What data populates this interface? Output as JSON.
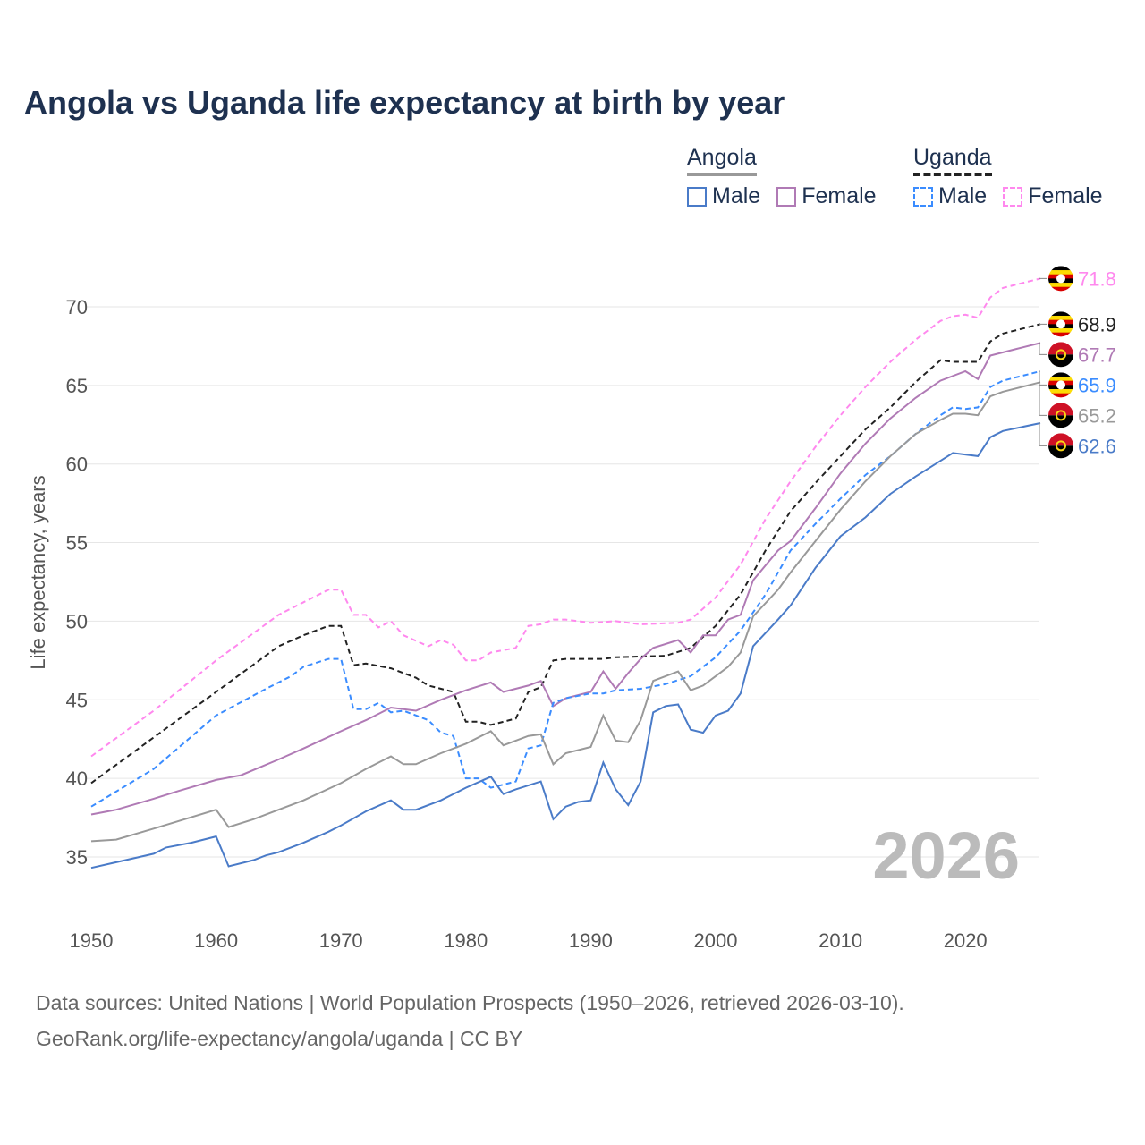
{
  "chart_data": {
    "type": "line",
    "title": "Angola vs Uganda life expectancy at birth by year",
    "xlabel": "",
    "ylabel": "Life expectancy, years",
    "xlim": [
      1950,
      2026
    ],
    "ylim": [
      32,
      73
    ],
    "xticks": [
      1950,
      1960,
      1970,
      1980,
      1990,
      2000,
      2010,
      2020
    ],
    "yticks": [
      35,
      40,
      45,
      50,
      55,
      60,
      65,
      70
    ],
    "grid": true,
    "watermark_year": "2026",
    "legend": {
      "placement": "top-right",
      "groups": [
        {
          "title": "Angola",
          "items": [
            "Male",
            "Female"
          ]
        },
        {
          "title": "Uganda",
          "items": [
            "Male",
            "Female"
          ]
        }
      ]
    },
    "series": [
      {
        "name": "Uganda Female",
        "country": "Uganda",
        "color": "#ff88ee",
        "dashed": true,
        "end_label": "71.8",
        "points": [
          [
            1950,
            41.4
          ],
          [
            1955,
            44.3
          ],
          [
            1960,
            47.5
          ],
          [
            1965,
            50.4
          ],
          [
            1967,
            51.2
          ],
          [
            1969,
            52.0
          ],
          [
            1970,
            52.0
          ],
          [
            1971,
            50.4
          ],
          [
            1972,
            50.4
          ],
          [
            1973,
            49.6
          ],
          [
            1974,
            50.0
          ],
          [
            1975,
            49.1
          ],
          [
            1977,
            48.4
          ],
          [
            1978,
            48.8
          ],
          [
            1979,
            48.5
          ],
          [
            1980,
            47.5
          ],
          [
            1981,
            47.5
          ],
          [
            1982,
            48.0
          ],
          [
            1984,
            48.3
          ],
          [
            1985,
            49.7
          ],
          [
            1986,
            49.8
          ],
          [
            1987,
            50.1
          ],
          [
            1988,
            50.1
          ],
          [
            1990,
            49.9
          ],
          [
            1992,
            50.0
          ],
          [
            1994,
            49.8
          ],
          [
            1997,
            49.9
          ],
          [
            1998,
            50.1
          ],
          [
            2000,
            51.5
          ],
          [
            2002,
            53.6
          ],
          [
            2004,
            56.5
          ],
          [
            2006,
            58.9
          ],
          [
            2008,
            61.1
          ],
          [
            2010,
            63.1
          ],
          [
            2012,
            64.9
          ],
          [
            2014,
            66.5
          ],
          [
            2016,
            67.9
          ],
          [
            2018,
            69.1
          ],
          [
            2019,
            69.4
          ],
          [
            2020,
            69.5
          ],
          [
            2021,
            69.3
          ],
          [
            2022,
            70.6
          ],
          [
            2023,
            71.2
          ],
          [
            2024,
            71.4
          ],
          [
            2026,
            71.8
          ]
        ]
      },
      {
        "name": "Uganda",
        "country": "Uganda",
        "color": "#222222",
        "dashed": true,
        "end_label": "68.9",
        "points": [
          [
            1950,
            39.7
          ],
          [
            1955,
            42.6
          ],
          [
            1960,
            45.5
          ],
          [
            1965,
            48.4
          ],
          [
            1967,
            49.1
          ],
          [
            1969,
            49.7
          ],
          [
            1970,
            49.7
          ],
          [
            1971,
            47.2
          ],
          [
            1972,
            47.3
          ],
          [
            1974,
            47.0
          ],
          [
            1976,
            46.4
          ],
          [
            1977,
            45.9
          ],
          [
            1979,
            45.5
          ],
          [
            1980,
            43.6
          ],
          [
            1981,
            43.6
          ],
          [
            1982,
            43.4
          ],
          [
            1984,
            43.8
          ],
          [
            1985,
            45.5
          ],
          [
            1986,
            45.8
          ],
          [
            1987,
            47.5
          ],
          [
            1988,
            47.6
          ],
          [
            1990,
            47.6
          ],
          [
            1991,
            47.6
          ],
          [
            1992,
            47.7
          ],
          [
            1996,
            47.8
          ],
          [
            1998,
            48.3
          ],
          [
            2000,
            49.7
          ],
          [
            2002,
            51.7
          ],
          [
            2004,
            54.5
          ],
          [
            2006,
            57.0
          ],
          [
            2008,
            58.8
          ],
          [
            2010,
            60.5
          ],
          [
            2012,
            62.2
          ],
          [
            2014,
            63.6
          ],
          [
            2016,
            65.2
          ],
          [
            2018,
            66.6
          ],
          [
            2019,
            66.5
          ],
          [
            2021,
            66.5
          ],
          [
            2022,
            67.8
          ],
          [
            2023,
            68.3
          ],
          [
            2026,
            68.9
          ]
        ]
      },
      {
        "name": "Angola Female",
        "country": "Angola",
        "color": "#b07ab5",
        "dashed": false,
        "end_label": "67.7",
        "points": [
          [
            1950,
            37.7
          ],
          [
            1952,
            38.0
          ],
          [
            1955,
            38.7
          ],
          [
            1957,
            39.2
          ],
          [
            1960,
            39.9
          ],
          [
            1962,
            40.2
          ],
          [
            1965,
            41.2
          ],
          [
            1967,
            41.9
          ],
          [
            1970,
            43.0
          ],
          [
            1972,
            43.7
          ],
          [
            1974,
            44.5
          ],
          [
            1976,
            44.3
          ],
          [
            1978,
            45.0
          ],
          [
            1980,
            45.6
          ],
          [
            1982,
            46.1
          ],
          [
            1983,
            45.5
          ],
          [
            1985,
            45.9
          ],
          [
            1986,
            46.2
          ],
          [
            1987,
            44.6
          ],
          [
            1988,
            45.1
          ],
          [
            1990,
            45.5
          ],
          [
            1991,
            46.8
          ],
          [
            1992,
            45.7
          ],
          [
            1993,
            46.7
          ],
          [
            1994,
            47.6
          ],
          [
            1995,
            48.3
          ],
          [
            1997,
            48.8
          ],
          [
            1998,
            48.0
          ],
          [
            1999,
            49.1
          ],
          [
            2000,
            49.1
          ],
          [
            2001,
            50.1
          ],
          [
            2002,
            50.4
          ],
          [
            2003,
            52.6
          ],
          [
            2005,
            54.5
          ],
          [
            2006,
            55.1
          ],
          [
            2008,
            57.2
          ],
          [
            2010,
            59.4
          ],
          [
            2012,
            61.3
          ],
          [
            2014,
            62.9
          ],
          [
            2016,
            64.2
          ],
          [
            2018,
            65.3
          ],
          [
            2020,
            65.9
          ],
          [
            2021,
            65.4
          ],
          [
            2022,
            66.9
          ],
          [
            2024,
            67.3
          ],
          [
            2026,
            67.7
          ]
        ]
      },
      {
        "name": "Uganda Male",
        "country": "Uganda",
        "color": "#3a8cff",
        "dashed": true,
        "end_label": "65.9",
        "points": [
          [
            1950,
            38.2
          ],
          [
            1955,
            40.6
          ],
          [
            1960,
            44.0
          ],
          [
            1964,
            45.7
          ],
          [
            1966,
            46.5
          ],
          [
            1967,
            47.1
          ],
          [
            1969,
            47.6
          ],
          [
            1970,
            47.6
          ],
          [
            1971,
            44.4
          ],
          [
            1972,
            44.4
          ],
          [
            1973,
            44.8
          ],
          [
            1974,
            44.2
          ],
          [
            1975,
            44.3
          ],
          [
            1977,
            43.7
          ],
          [
            1978,
            42.9
          ],
          [
            1979,
            42.7
          ],
          [
            1980,
            40.0
          ],
          [
            1981,
            40.0
          ],
          [
            1982,
            39.4
          ],
          [
            1984,
            39.8
          ],
          [
            1985,
            41.9
          ],
          [
            1986,
            42.1
          ],
          [
            1987,
            44.8
          ],
          [
            1988,
            45.1
          ],
          [
            1990,
            45.4
          ],
          [
            1991,
            45.4
          ],
          [
            1992,
            45.6
          ],
          [
            1994,
            45.7
          ],
          [
            1996,
            46.0
          ],
          [
            1998,
            46.5
          ],
          [
            2000,
            47.7
          ],
          [
            2002,
            49.4
          ],
          [
            2004,
            51.7
          ],
          [
            2006,
            54.5
          ],
          [
            2008,
            56.2
          ],
          [
            2010,
            57.8
          ],
          [
            2012,
            59.3
          ],
          [
            2014,
            60.5
          ],
          [
            2016,
            61.9
          ],
          [
            2018,
            63.1
          ],
          [
            2019,
            63.6
          ],
          [
            2020,
            63.5
          ],
          [
            2021,
            63.6
          ],
          [
            2022,
            64.9
          ],
          [
            2023,
            65.3
          ],
          [
            2026,
            65.9
          ]
        ]
      },
      {
        "name": "Angola",
        "country": "Angola",
        "color": "#999999",
        "dashed": false,
        "end_label": "65.2",
        "points": [
          [
            1950,
            36.0
          ],
          [
            1952,
            36.1
          ],
          [
            1955,
            36.8
          ],
          [
            1960,
            38.0
          ],
          [
            1961,
            36.9
          ],
          [
            1963,
            37.4
          ],
          [
            1965,
            38.0
          ],
          [
            1967,
            38.6
          ],
          [
            1970,
            39.7
          ],
          [
            1972,
            40.6
          ],
          [
            1974,
            41.4
          ],
          [
            1975,
            40.9
          ],
          [
            1976,
            40.9
          ],
          [
            1978,
            41.6
          ],
          [
            1980,
            42.2
          ],
          [
            1982,
            43.0
          ],
          [
            1983,
            42.1
          ],
          [
            1985,
            42.7
          ],
          [
            1986,
            42.8
          ],
          [
            1987,
            40.9
          ],
          [
            1988,
            41.6
          ],
          [
            1990,
            42.0
          ],
          [
            1991,
            44.0
          ],
          [
            1992,
            42.4
          ],
          [
            1993,
            42.3
          ],
          [
            1994,
            43.7
          ],
          [
            1995,
            46.2
          ],
          [
            1997,
            46.8
          ],
          [
            1998,
            45.6
          ],
          [
            1999,
            45.9
          ],
          [
            2000,
            46.5
          ],
          [
            2001,
            47.1
          ],
          [
            2002,
            48.0
          ],
          [
            2003,
            50.3
          ],
          [
            2005,
            52.0
          ],
          [
            2006,
            53.1
          ],
          [
            2008,
            55.1
          ],
          [
            2010,
            57.1
          ],
          [
            2012,
            58.9
          ],
          [
            2014,
            60.5
          ],
          [
            2016,
            61.9
          ],
          [
            2018,
            62.8
          ],
          [
            2019,
            63.2
          ],
          [
            2020,
            63.2
          ],
          [
            2021,
            63.1
          ],
          [
            2022,
            64.3
          ],
          [
            2023,
            64.6
          ],
          [
            2026,
            65.2
          ]
        ]
      },
      {
        "name": "Angola Male",
        "country": "Angola",
        "color": "#4a7bc8",
        "dashed": false,
        "end_label": "62.6",
        "points": [
          [
            1950,
            34.3
          ],
          [
            1955,
            35.2
          ],
          [
            1956,
            35.6
          ],
          [
            1958,
            35.9
          ],
          [
            1960,
            36.3
          ],
          [
            1961,
            34.4
          ],
          [
            1963,
            34.8
          ],
          [
            1964,
            35.1
          ],
          [
            1965,
            35.3
          ],
          [
            1967,
            35.9
          ],
          [
            1969,
            36.6
          ],
          [
            1970,
            37.0
          ],
          [
            1972,
            37.9
          ],
          [
            1974,
            38.6
          ],
          [
            1975,
            38.0
          ],
          [
            1976,
            38.0
          ],
          [
            1978,
            38.6
          ],
          [
            1980,
            39.4
          ],
          [
            1982,
            40.1
          ],
          [
            1983,
            39.0
          ],
          [
            1984,
            39.3
          ],
          [
            1986,
            39.8
          ],
          [
            1987,
            37.4
          ],
          [
            1988,
            38.2
          ],
          [
            1989,
            38.5
          ],
          [
            1990,
            38.6
          ],
          [
            1991,
            41.0
          ],
          [
            1992,
            39.3
          ],
          [
            1993,
            38.3
          ],
          [
            1994,
            39.8
          ],
          [
            1995,
            44.2
          ],
          [
            1996,
            44.6
          ],
          [
            1997,
            44.7
          ],
          [
            1998,
            43.1
          ],
          [
            1999,
            42.9
          ],
          [
            2000,
            44.0
          ],
          [
            2001,
            44.3
          ],
          [
            2002,
            45.4
          ],
          [
            2003,
            48.4
          ],
          [
            2005,
            50.1
          ],
          [
            2006,
            51.0
          ],
          [
            2008,
            53.4
          ],
          [
            2010,
            55.4
          ],
          [
            2012,
            56.6
          ],
          [
            2014,
            58.1
          ],
          [
            2016,
            59.2
          ],
          [
            2018,
            60.2
          ],
          [
            2019,
            60.7
          ],
          [
            2021,
            60.5
          ],
          [
            2022,
            61.7
          ],
          [
            2023,
            62.1
          ],
          [
            2026,
            62.6
          ]
        ]
      }
    ]
  },
  "sources": {
    "line1": "Data sources: United Nations | World Population Prospects (1950–2026, retrieved 2026-03-10).",
    "line2": "GeoRank.org/life-expectancy/angola/uganda | CC BY"
  }
}
